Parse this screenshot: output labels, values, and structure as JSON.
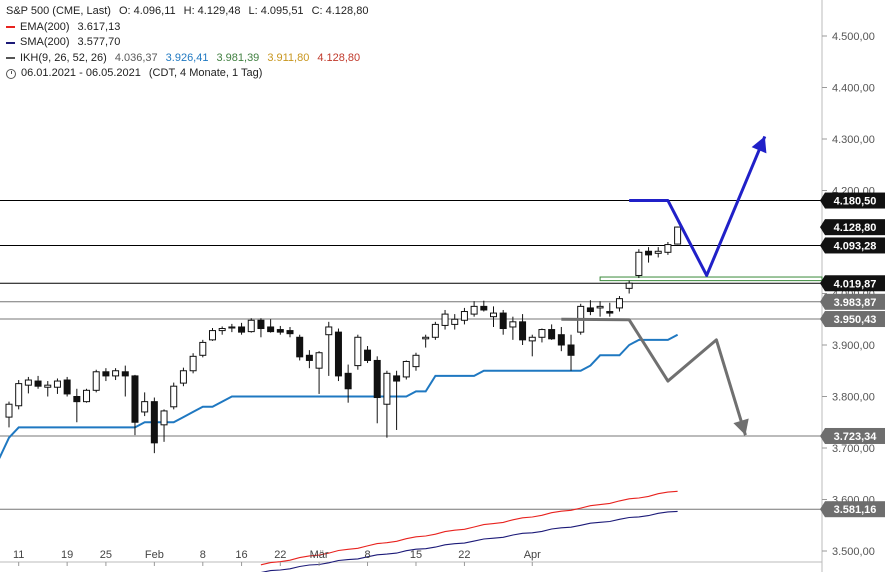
{
  "header": {
    "symbol": "S&P 500 (CME, Last)",
    "ohlc": {
      "o": "O: 4.096,11",
      "h": "H: 4.129,48",
      "l": "L: 4.095,51",
      "c": "C: 4.128,80"
    },
    "ema": {
      "label": "EMA(200)",
      "value": "3.617,13",
      "color": "#e8231f"
    },
    "sma": {
      "label": "SMA(200)",
      "value": "3.577,70",
      "color": "#1c1a78"
    },
    "ikh": {
      "label": "IKH(9, 26, 52, 26)",
      "color": "#555555",
      "values": [
        {
          "text": "4.036,37",
          "color": "#5a5a5a"
        },
        {
          "text": "3.926,41",
          "color": "#1f78c1"
        },
        {
          "text": "3.981,39",
          "color": "#3f7f3f"
        },
        {
          "text": "3.911,80",
          "color": "#c8961e"
        },
        {
          "text": "4.128,80",
          "color": "#c0392b"
        }
      ]
    },
    "range": "06.01.2021 - 06.05.2021",
    "period": "(CDT, 4 Monate, 1 Tag)"
  },
  "chart_data": {
    "type": "candlestick",
    "ylim": [
      3460,
      4570
    ],
    "y_ticks": [
      {
        "value": 3500,
        "label": "3.500,00"
      },
      {
        "value": 3600,
        "label": "3.600,00"
      },
      {
        "value": 3700,
        "label": "3.700,00"
      },
      {
        "value": 3800,
        "label": "3.800,00"
      },
      {
        "value": 3900,
        "label": "3.900,00"
      },
      {
        "value": 4000,
        "label": "4.000,00"
      },
      {
        "value": 4100,
        "label": "4.100,00"
      },
      {
        "value": 4200,
        "label": "4.200,00"
      },
      {
        "value": 4300,
        "label": "4.300,00"
      },
      {
        "value": 4400,
        "label": "4.400,00"
      },
      {
        "value": 4500,
        "label": "4.500,00"
      }
    ],
    "x_ticks": [
      {
        "i": 1,
        "label": "11"
      },
      {
        "i": 6,
        "label": "19"
      },
      {
        "i": 10,
        "label": "25"
      },
      {
        "i": 15,
        "label": "Feb"
      },
      {
        "i": 20,
        "label": "8"
      },
      {
        "i": 24,
        "label": "16"
      },
      {
        "i": 28,
        "label": "22"
      },
      {
        "i": 32,
        "label": "Mär"
      },
      {
        "i": 37,
        "label": "8"
      },
      {
        "i": 42,
        "label": "15"
      },
      {
        "i": 47,
        "label": "22"
      },
      {
        "i": 54,
        "label": "Apr"
      }
    ],
    "candles": [
      {
        "o": 3760,
        "h": 3790,
        "l": 3740,
        "c": 3785
      },
      {
        "o": 3782,
        "h": 3832,
        "l": 3775,
        "c": 3825
      },
      {
        "o": 3822,
        "h": 3838,
        "l": 3806,
        "c": 3832
      },
      {
        "o": 3830,
        "h": 3840,
        "l": 3815,
        "c": 3820
      },
      {
        "o": 3818,
        "h": 3830,
        "l": 3800,
        "c": 3822
      },
      {
        "o": 3818,
        "h": 3835,
        "l": 3805,
        "c": 3830
      },
      {
        "o": 3832,
        "h": 3838,
        "l": 3800,
        "c": 3805
      },
      {
        "o": 3800,
        "h": 3815,
        "l": 3750,
        "c": 3790
      },
      {
        "o": 3790,
        "h": 3815,
        "l": 3788,
        "c": 3812
      },
      {
        "o": 3812,
        "h": 3852,
        "l": 3808,
        "c": 3848
      },
      {
        "o": 3848,
        "h": 3855,
        "l": 3830,
        "c": 3840
      },
      {
        "o": 3840,
        "h": 3855,
        "l": 3832,
        "c": 3850
      },
      {
        "o": 3848,
        "h": 3860,
        "l": 3800,
        "c": 3840
      },
      {
        "o": 3840,
        "h": 3842,
        "l": 3725,
        "c": 3750
      },
      {
        "o": 3770,
        "h": 3808,
        "l": 3762,
        "c": 3790
      },
      {
        "o": 3790,
        "h": 3798,
        "l": 3690,
        "c": 3710
      },
      {
        "o": 3745,
        "h": 3775,
        "l": 3712,
        "c": 3772
      },
      {
        "o": 3780,
        "h": 3827,
        "l": 3775,
        "c": 3820
      },
      {
        "o": 3826,
        "h": 3856,
        "l": 3820,
        "c": 3850
      },
      {
        "o": 3850,
        "h": 3884,
        "l": 3845,
        "c": 3878
      },
      {
        "o": 3880,
        "h": 3910,
        "l": 3876,
        "c": 3905
      },
      {
        "o": 3910,
        "h": 3933,
        "l": 3908,
        "c": 3928
      },
      {
        "o": 3928,
        "h": 3936,
        "l": 3920,
        "c": 3932
      },
      {
        "o": 3933,
        "h": 3941,
        "l": 3925,
        "c": 3935
      },
      {
        "o": 3935,
        "h": 3943,
        "l": 3920,
        "c": 3925
      },
      {
        "o": 3926,
        "h": 3952,
        "l": 3924,
        "c": 3948
      },
      {
        "o": 3948,
        "h": 3952,
        "l": 3915,
        "c": 3932
      },
      {
        "o": 3935,
        "h": 3950,
        "l": 3924,
        "c": 3926
      },
      {
        "o": 3930,
        "h": 3937,
        "l": 3920,
        "c": 3925
      },
      {
        "o": 3928,
        "h": 3935,
        "l": 3915,
        "c": 3922
      },
      {
        "o": 3915,
        "h": 3920,
        "l": 3870,
        "c": 3877
      },
      {
        "o": 3880,
        "h": 3890,
        "l": 3855,
        "c": 3870
      },
      {
        "o": 3855,
        "h": 3888,
        "l": 3805,
        "c": 3885
      },
      {
        "o": 3920,
        "h": 3945,
        "l": 3840,
        "c": 3935
      },
      {
        "o": 3925,
        "h": 3932,
        "l": 3830,
        "c": 3840
      },
      {
        "o": 3845,
        "h": 3862,
        "l": 3788,
        "c": 3815
      },
      {
        "o": 3860,
        "h": 3920,
        "l": 3852,
        "c": 3915
      },
      {
        "o": 3890,
        "h": 3898,
        "l": 3865,
        "c": 3870
      },
      {
        "o": 3870,
        "h": 3878,
        "l": 3748,
        "c": 3798
      },
      {
        "o": 3785,
        "h": 3850,
        "l": 3720,
        "c": 3845
      },
      {
        "o": 3840,
        "h": 3850,
        "l": 3735,
        "c": 3830
      },
      {
        "o": 3838,
        "h": 3870,
        "l": 3833,
        "c": 3868
      },
      {
        "o": 3858,
        "h": 3885,
        "l": 3850,
        "c": 3880
      },
      {
        "o": 3912,
        "h": 3920,
        "l": 3895,
        "c": 3915
      },
      {
        "o": 3915,
        "h": 3945,
        "l": 3910,
        "c": 3940
      },
      {
        "o": 3938,
        "h": 3968,
        "l": 3930,
        "c": 3960
      },
      {
        "o": 3940,
        "h": 3960,
        "l": 3930,
        "c": 3950
      },
      {
        "o": 3948,
        "h": 3972,
        "l": 3940,
        "c": 3965
      },
      {
        "o": 3960,
        "h": 3985,
        "l": 3955,
        "c": 3975
      },
      {
        "o": 3975,
        "h": 3986,
        "l": 3965,
        "c": 3968
      },
      {
        "o": 3955,
        "h": 3975,
        "l": 3935,
        "c": 3962
      },
      {
        "o": 3962,
        "h": 3968,
        "l": 3920,
        "c": 3932
      },
      {
        "o": 3935,
        "h": 3955,
        "l": 3910,
        "c": 3945
      },
      {
        "o": 3945,
        "h": 3960,
        "l": 3900,
        "c": 3910
      },
      {
        "o": 3908,
        "h": 3920,
        "l": 3878,
        "c": 3915
      },
      {
        "o": 3915,
        "h": 3932,
        "l": 3905,
        "c": 3930
      },
      {
        "o": 3930,
        "h": 3940,
        "l": 3910,
        "c": 3912
      },
      {
        "o": 3920,
        "h": 3935,
        "l": 3888,
        "c": 3900
      },
      {
        "o": 3900,
        "h": 3920,
        "l": 3850,
        "c": 3880
      },
      {
        "o": 3925,
        "h": 3980,
        "l": 3920,
        "c": 3975
      },
      {
        "o": 3972,
        "h": 3987,
        "l": 3958,
        "c": 3965
      },
      {
        "o": 3972,
        "h": 3985,
        "l": 3955,
        "c": 3975
      },
      {
        "o": 3965,
        "h": 3982,
        "l": 3955,
        "c": 3962
      },
      {
        "o": 3972,
        "h": 3995,
        "l": 3965,
        "c": 3990
      },
      {
        "o": 4010,
        "h": 4025,
        "l": 4000,
        "c": 4020
      },
      {
        "o": 4035,
        "h": 4086,
        "l": 4030,
        "c": 4080
      },
      {
        "o": 4082,
        "h": 4090,
        "l": 4060,
        "c": 4075
      },
      {
        "o": 4078,
        "h": 4090,
        "l": 4070,
        "c": 4082
      },
      {
        "o": 4080,
        "h": 4100,
        "l": 4075,
        "c": 4095
      },
      {
        "o": 4096,
        "h": 4130,
        "l": 4095,
        "c": 4129
      }
    ],
    "kijun": [
      3720,
      3740,
      3740,
      3740,
      3740,
      3740,
      3740,
      3740,
      3740,
      3740,
      3740,
      3740,
      3740,
      3740,
      3750,
      3750,
      3750,
      3750,
      3760,
      3770,
      3780,
      3780,
      3790,
      3800,
      3800,
      3800,
      3800,
      3800,
      3800,
      3800,
      3800,
      3800,
      3800,
      3800,
      3800,
      3800,
      3800,
      3800,
      3800,
      3800,
      3800,
      3800,
      3810,
      3810,
      3840,
      3840,
      3840,
      3840,
      3840,
      3850,
      3850,
      3850,
      3850,
      3850,
      3850,
      3850,
      3850,
      3850,
      3850,
      3850,
      3860,
      3880,
      3880,
      3880,
      3900,
      3910,
      3910,
      3910,
      3910,
      3920
    ],
    "ema200_start": 3473,
    "ema200_end": 3617,
    "sma200_start": 3458,
    "sma200_end": 3578,
    "h_levels": [
      {
        "value": 4180.5,
        "label": "4.180,50",
        "color": "#000000",
        "badge": "dark"
      },
      {
        "value": 4128.8,
        "label": "4.128,80",
        "color": null,
        "badge": "dark"
      },
      {
        "value": 4093.28,
        "label": "4.093,28",
        "color": "#000000",
        "badge": "dark"
      },
      {
        "value": 4019.87,
        "label": "4.019,87",
        "color": "#000000",
        "badge": "dark"
      },
      {
        "value": 3983.87,
        "label": "3.983,87",
        "color": "#777777",
        "badge": "grey"
      },
      {
        "value": 3950.43,
        "label": "3.950,43",
        "color": "#777777",
        "badge": "grey"
      },
      {
        "value": 3723.34,
        "label": "3.723,34",
        "color": "#777777",
        "badge": "grey"
      },
      {
        "value": 3581.16,
        "label": "3.581,16",
        "color": "#777777",
        "badge": "grey"
      }
    ],
    "zone": {
      "low": 4025,
      "high": 4032,
      "from_i": 61
    },
    "bull_path": [
      [
        64,
        4180.5
      ],
      [
        68,
        4180.5
      ],
      [
        72,
        4035
      ],
      [
        78,
        4305
      ]
    ],
    "bear_path": [
      [
        57,
        3950
      ],
      [
        64,
        3949
      ],
      [
        68,
        3830
      ],
      [
        73,
        3910
      ],
      [
        76,
        3725
      ]
    ],
    "colors": {
      "kijun": "#1f78c1",
      "ema": "#e8231f",
      "sma": "#1c1a78",
      "bull_arrow": "#2020c8",
      "bear_arrow": "#707070",
      "zone": "#3a8a3a"
    }
  }
}
